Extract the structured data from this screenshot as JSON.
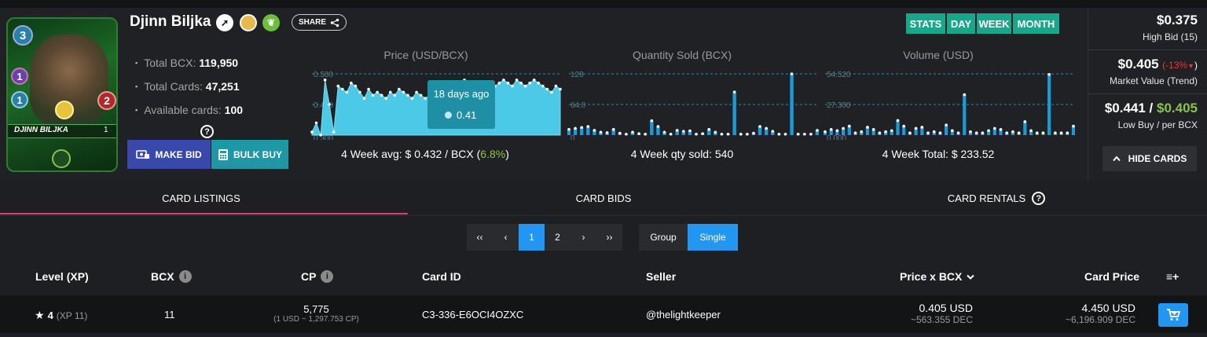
{
  "card": {
    "name": "Djinn Biljka",
    "card_label": "DJINN BILJKA",
    "mana": "3",
    "magic": "1",
    "speed": "1",
    "health": "2",
    "level": "1"
  },
  "share_label": "SHARE",
  "stats": [
    {
      "label": "Total BCX:",
      "value": "119,950"
    },
    {
      "label": "Total Cards:",
      "value": "47,251"
    },
    {
      "label": "Available cards:",
      "value": "100"
    }
  ],
  "actions": {
    "make_bid": "MAKE BID",
    "bulk_buy": "BULK BUY"
  },
  "help_mark": "?",
  "ranges": [
    "STATS",
    "DAY",
    "WEEK",
    "MONTH"
  ],
  "charts": {
    "price": {
      "title": "Price (USD/BCX)",
      "ticks": [
        "0.500",
        "0.400",
        "0.300"
      ],
      "ymin": 0.3,
      "ymax": 0.5,
      "values": [
        0.31,
        0.34,
        0.3,
        0.48,
        0.4,
        0.31,
        0.46,
        0.45,
        0.44,
        0.47,
        0.46,
        0.44,
        0.42,
        0.45,
        0.43,
        0.44,
        0.43,
        0.42,
        0.44,
        0.43,
        0.45,
        0.44,
        0.43,
        0.42,
        0.44,
        0.43,
        0.42,
        0.43,
        0.44,
        0.45,
        0.44,
        0.43,
        0.44,
        0.45,
        0.44,
        0.48,
        0.46,
        0.44,
        0.45,
        0.47,
        0.46,
        0.45,
        0.46,
        0.47,
        0.48,
        0.47,
        0.46,
        0.48,
        0.47,
        0.46,
        0.47,
        0.48,
        0.47,
        0.46,
        0.45,
        0.44,
        0.46,
        0.45
      ],
      "tooltip": {
        "when": "18 days ago",
        "value": "0.41"
      },
      "footer_label": "4 Week avg: $ 0.432 / BCX (",
      "footer_change": "6.8%",
      "footer_close": ")"
    },
    "qty": {
      "title": "Quantity Sold (BCX)",
      "ticks": [
        "128",
        "64.0",
        "0"
      ],
      "ymin": 0,
      "ymax": 128,
      "values": [
        12,
        14,
        16,
        18,
        10,
        6,
        5,
        12,
        4,
        2,
        6,
        3,
        2,
        30,
        18,
        6,
        2,
        10,
        8,
        9,
        2,
        3,
        12,
        6,
        2,
        2,
        90,
        2,
        2,
        4,
        18,
        14,
        8,
        2,
        2,
        128,
        2,
        2,
        2,
        10
      ],
      "footer": "4 Week qty sold: 540"
    },
    "volume": {
      "title": "Volume (USD)",
      "ticks": [
        "54.520",
        "27.300",
        "0.000"
      ],
      "ymin": 0,
      "ymax": 54.52,
      "values": [
        3,
        5,
        4,
        6,
        8,
        2,
        3,
        7,
        5,
        2,
        3,
        4,
        13,
        8,
        2,
        6,
        7,
        2,
        3,
        2,
        9,
        4,
        2,
        36,
        3,
        2,
        2,
        4,
        6,
        5,
        2,
        3,
        2,
        12,
        4,
        2,
        2,
        54,
        2,
        2,
        2,
        8
      ],
      "footer": "4 Week Total: $ 233.52"
    }
  },
  "pricing": {
    "high_bid": "$0.375",
    "high_bid_label": "High Bid (15)",
    "market_value": "$0.405",
    "market_trend": "(-13%",
    "market_close": ")",
    "market_label": "Market Value (Trend)",
    "low_buy": "$0.441",
    "low_sep": " / ",
    "per_bcx": "$0.405",
    "low_label": "Low Buy / per BCX",
    "hide_cards": "HIDE CARDS"
  },
  "tabs": [
    "CARD LISTINGS",
    "CARD BIDS",
    "CARD RENTALS"
  ],
  "pagination": {
    "first": "‹‹",
    "prev": "‹",
    "pages": [
      "1",
      "2"
    ],
    "next": "›",
    "last": "››",
    "group": "Group",
    "single": "Single"
  },
  "columns": {
    "level": "Level (XP)",
    "bcx": "BCX",
    "cp": "CP",
    "card_id": "Card ID",
    "seller": "Seller",
    "price_bcx": "Price x BCX",
    "card_price": "Card Price",
    "add_icon": "≡+"
  },
  "rows": [
    {
      "level": "4",
      "xp": "(XP 11)",
      "bcx": "11",
      "cp": "5,775",
      "cp_sub": "(1 USD ~ 1,297.753 CP)",
      "card_id": "C3-336-E6OCI4OZXC",
      "seller": "@thelightkeeper",
      "price_usd": "0.405 USD",
      "price_dec": "~563.355 DEC",
      "card_usd": "4.450 USD",
      "card_dec": "~6,196.909 DEC"
    }
  ],
  "colors": {
    "accent": "#2196f3",
    "range": "#1aa68a",
    "chart": "#4cc9e6",
    "bar": "#1a9ad6",
    "tab_underline": "#e23c6a",
    "green": "#8bc34a",
    "red": "#e53935"
  }
}
